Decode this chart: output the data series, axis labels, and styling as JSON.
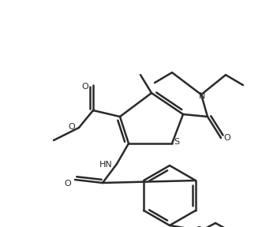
{
  "bg_color": "#ffffff",
  "line_color": "#2a2a2a",
  "line_width": 1.8,
  "figsize": [
    3.32,
    2.88
  ],
  "dpi": 100,
  "xlim": [
    0,
    332
  ],
  "ylim": [
    0,
    288
  ]
}
